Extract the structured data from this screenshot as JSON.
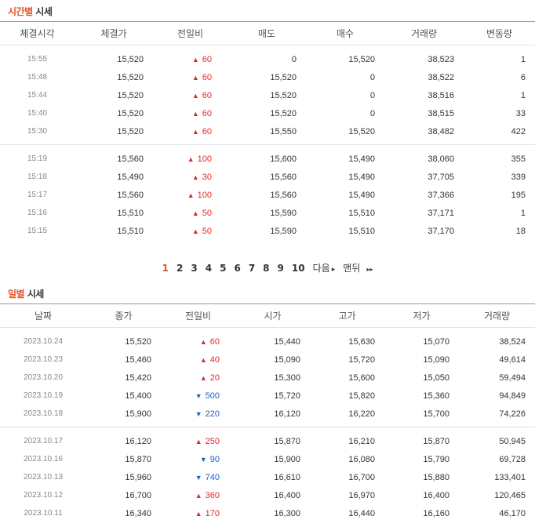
{
  "hourly": {
    "title_accent": "시간별",
    "title_rest": " 시세",
    "headers": [
      "체결시각",
      "체결가",
      "전일비",
      "매도",
      "매수",
      "거래량",
      "변동량"
    ],
    "groups": [
      [
        {
          "time": "15:55",
          "price": "15,520",
          "dir": "up",
          "change": "60",
          "ask": "0",
          "bid": "15,520",
          "volume": "38,523",
          "delta": "1"
        },
        {
          "time": "15:48",
          "price": "15,520",
          "dir": "up",
          "change": "60",
          "ask": "15,520",
          "bid": "0",
          "volume": "38,522",
          "delta": "6"
        },
        {
          "time": "15:44",
          "price": "15,520",
          "dir": "up",
          "change": "60",
          "ask": "15,520",
          "bid": "0",
          "volume": "38,516",
          "delta": "1"
        },
        {
          "time": "15:40",
          "price": "15,520",
          "dir": "up",
          "change": "60",
          "ask": "15,520",
          "bid": "0",
          "volume": "38,515",
          "delta": "33"
        },
        {
          "time": "15:30",
          "price": "15,520",
          "dir": "up",
          "change": "60",
          "ask": "15,550",
          "bid": "15,520",
          "volume": "38,482",
          "delta": "422"
        }
      ],
      [
        {
          "time": "15:19",
          "price": "15,560",
          "dir": "up",
          "change": "100",
          "ask": "15,600",
          "bid": "15,490",
          "volume": "38,060",
          "delta": "355"
        },
        {
          "time": "15:18",
          "price": "15,490",
          "dir": "up",
          "change": "30",
          "ask": "15,560",
          "bid": "15,490",
          "volume": "37,705",
          "delta": "339"
        },
        {
          "time": "15:17",
          "price": "15,560",
          "dir": "up",
          "change": "100",
          "ask": "15,560",
          "bid": "15,490",
          "volume": "37,366",
          "delta": "195"
        },
        {
          "time": "15:16",
          "price": "15,510",
          "dir": "up",
          "change": "50",
          "ask": "15,590",
          "bid": "15,510",
          "volume": "37,171",
          "delta": "1"
        },
        {
          "time": "15:15",
          "price": "15,510",
          "dir": "up",
          "change": "50",
          "ask": "15,590",
          "bid": "15,510",
          "volume": "37,170",
          "delta": "18"
        }
      ]
    ]
  },
  "pagination": {
    "pages": [
      "1",
      "2",
      "3",
      "4",
      "5",
      "6",
      "7",
      "8",
      "9",
      "10"
    ],
    "active": "1",
    "next_label": "다음",
    "next_icon": "▸",
    "last_label": "맨뒤",
    "last_icon": "▸▸"
  },
  "daily": {
    "title_accent": "일별",
    "title_rest": " 시세",
    "headers": [
      "날짜",
      "종가",
      "전일비",
      "시가",
      "고가",
      "저가",
      "거래량"
    ],
    "groups": [
      [
        {
          "date": "2023.10.24",
          "close": "15,520",
          "dir": "up",
          "change": "60",
          "open": "15,440",
          "high": "15,630",
          "low": "15,070",
          "volume": "38,524"
        },
        {
          "date": "2023.10.23",
          "close": "15,460",
          "dir": "up",
          "change": "40",
          "open": "15,090",
          "high": "15,720",
          "low": "15,090",
          "volume": "49,614"
        },
        {
          "date": "2023.10.20",
          "close": "15,420",
          "dir": "up",
          "change": "20",
          "open": "15,300",
          "high": "15,600",
          "low": "15,050",
          "volume": "59,494"
        },
        {
          "date": "2023.10.19",
          "close": "15,400",
          "dir": "down",
          "change": "500",
          "open": "15,720",
          "high": "15,820",
          "low": "15,360",
          "volume": "94,849"
        },
        {
          "date": "2023.10.18",
          "close": "15,900",
          "dir": "down",
          "change": "220",
          "open": "16,120",
          "high": "16,220",
          "low": "15,700",
          "volume": "74,226"
        }
      ],
      [
        {
          "date": "2023.10.17",
          "close": "16,120",
          "dir": "up",
          "change": "250",
          "open": "15,870",
          "high": "16,210",
          "low": "15,870",
          "volume": "50,945"
        },
        {
          "date": "2023.10.16",
          "close": "15,870",
          "dir": "down",
          "change": "90",
          "open": "15,900",
          "high": "16,080",
          "low": "15,790",
          "volume": "69,728"
        },
        {
          "date": "2023.10.13",
          "close": "15,960",
          "dir": "down",
          "change": "740",
          "open": "16,610",
          "high": "16,700",
          "low": "15,880",
          "volume": "133,401"
        },
        {
          "date": "2023.10.12",
          "close": "16,700",
          "dir": "up",
          "change": "360",
          "open": "16,400",
          "high": "16,970",
          "low": "16,400",
          "volume": "120,465"
        },
        {
          "date": "2023.10.11",
          "close": "16,340",
          "dir": "up",
          "change": "170",
          "open": "16,300",
          "high": "16,440",
          "low": "16,160",
          "volume": "46,170"
        }
      ]
    ]
  },
  "colors": {
    "up": "#e02a2a",
    "down": "#1c62c6",
    "accent": "#e3552b"
  },
  "icons": {
    "up": "triangle-up-icon",
    "down": "triangle-down-icon"
  }
}
